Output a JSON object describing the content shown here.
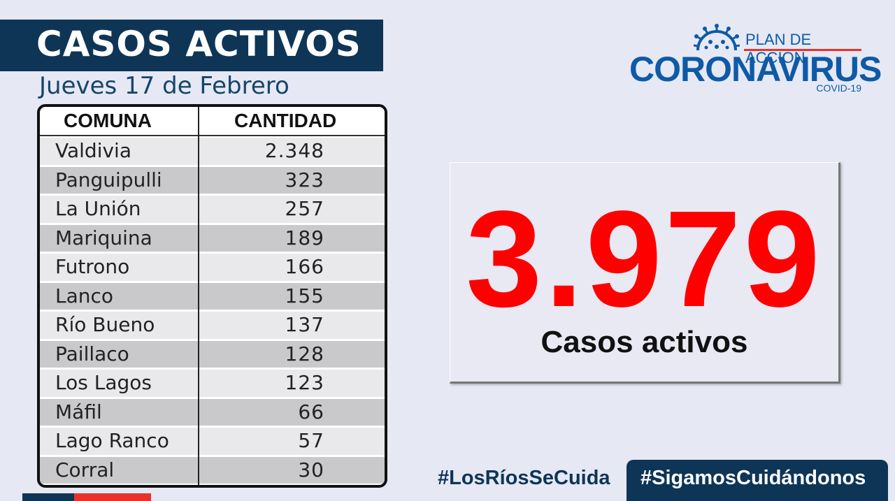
{
  "header": {
    "title": "CASOS ACTIVOS",
    "date": "Jueves 17 de Febrero"
  },
  "table": {
    "columns": [
      "COMUNA",
      "CANTIDAD"
    ],
    "rows": [
      {
        "comuna": "Valdivia",
        "cantidad": "2.348"
      },
      {
        "comuna": "Panguipulli",
        "cantidad": "323"
      },
      {
        "comuna": "La Unión",
        "cantidad": "257"
      },
      {
        "comuna": "Mariquina",
        "cantidad": "189"
      },
      {
        "comuna": "Futrono",
        "cantidad": "166"
      },
      {
        "comuna": "Lanco",
        "cantidad": "155"
      },
      {
        "comuna": "Río Bueno",
        "cantidad": "137"
      },
      {
        "comuna": "Paillaco",
        "cantidad": "128"
      },
      {
        "comuna": "Los Lagos",
        "cantidad": "123"
      },
      {
        "comuna": "Máfil",
        "cantidad": "66"
      },
      {
        "comuna": "Lago Ranco",
        "cantidad": "57"
      },
      {
        "comuna": "Corral",
        "cantidad": "30"
      }
    ]
  },
  "total": {
    "number": "3.979",
    "label": "Casos activos"
  },
  "logo": {
    "plan": "PLAN DE ACCIÓN",
    "main": "CORONAVIRUS",
    "sub": "COVID-19",
    "icon": "virus-icon"
  },
  "footer": {
    "hashtag_1": "#LosRíosSeCuida",
    "hashtag_2": "#SigamosCuidándonos"
  },
  "colors": {
    "navy": "#0e3556",
    "brand_blue": "#0e5aa6",
    "accent_red": "#e8322b",
    "number_red": "#ff0000",
    "background": "#e6e8f4"
  }
}
